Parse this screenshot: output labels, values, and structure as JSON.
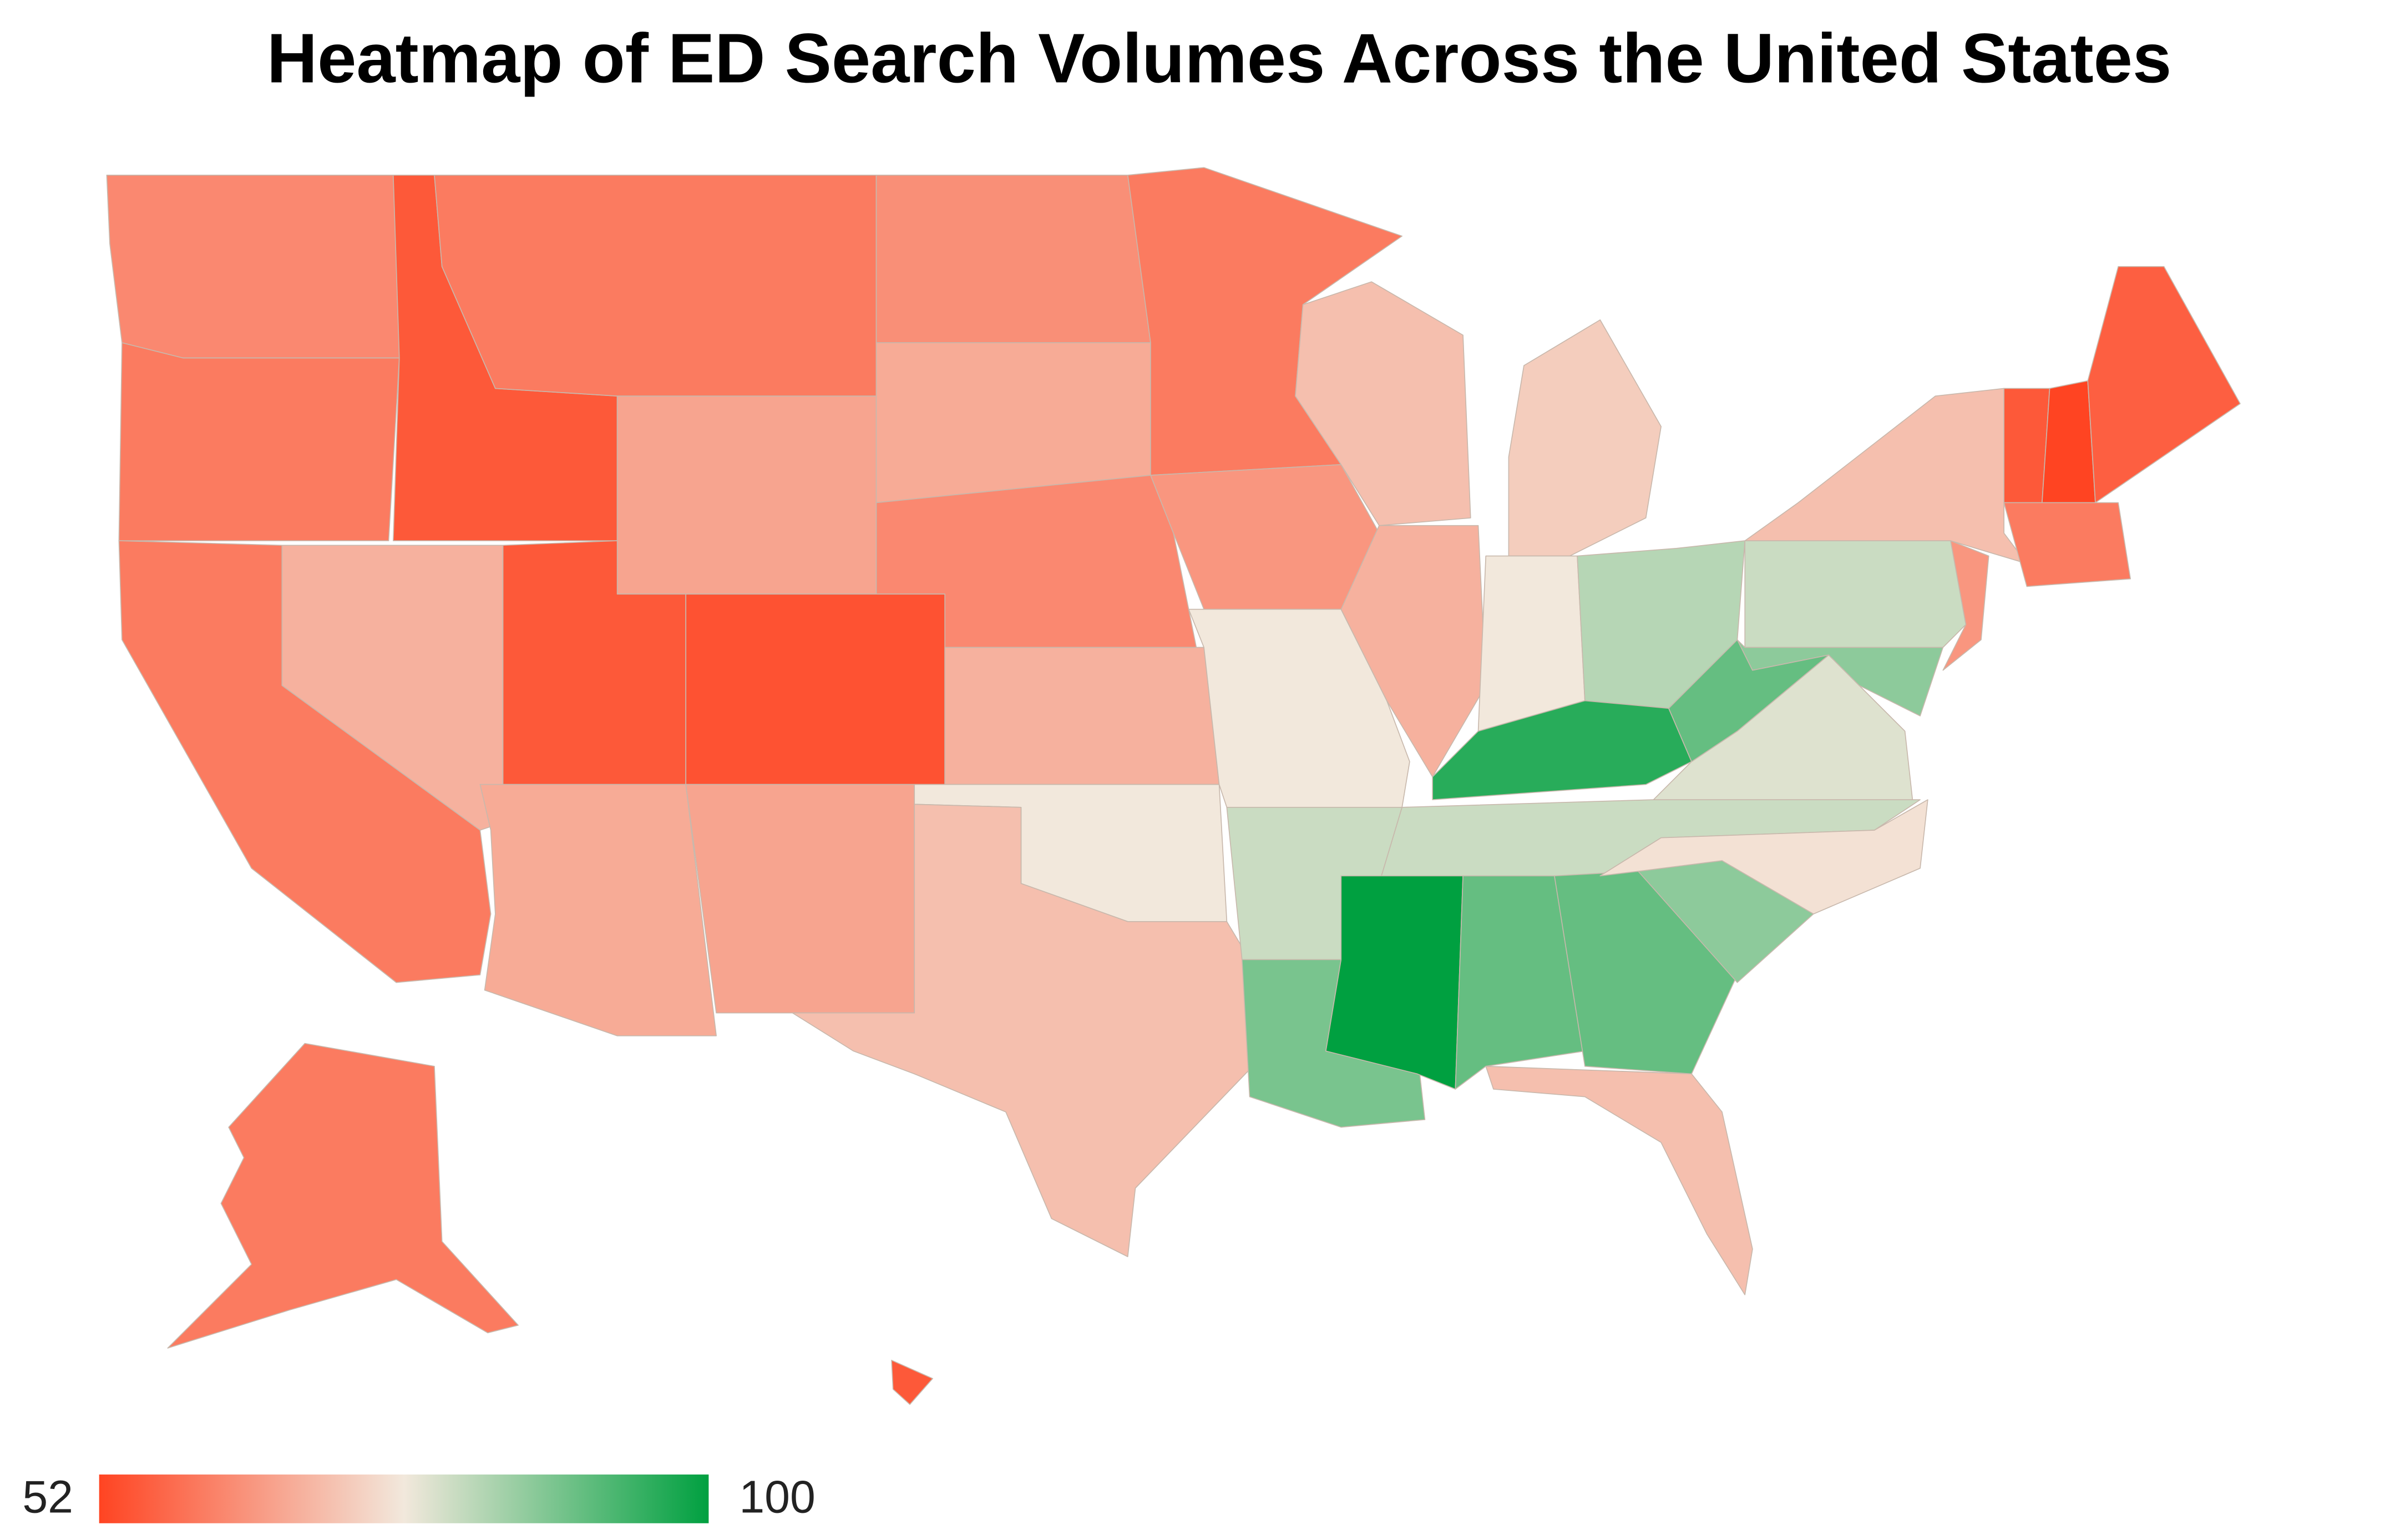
{
  "chart_data": {
    "type": "choropleth",
    "title": "Heatmap of ED Search Volumes Across the United States",
    "values": [
      62,
      60,
      55,
      60,
      66,
      63,
      67,
      62,
      60,
      68,
      60,
      55,
      54,
      67,
      66,
      68,
      76,
      70,
      64,
      76,
      80,
      88,
      70,
      68,
      72,
      76,
      82,
      96,
      80,
      100,
      90,
      90,
      86,
      75,
      70,
      78,
      90,
      80,
      86,
      70,
      64,
      55,
      52,
      56,
      60,
      60,
      55
    ],
    "vlim": [
      52,
      100
    ],
    "colors": [
      "#ff4422",
      "#f2e8dc",
      "#00a040"
    ]
  }
}
